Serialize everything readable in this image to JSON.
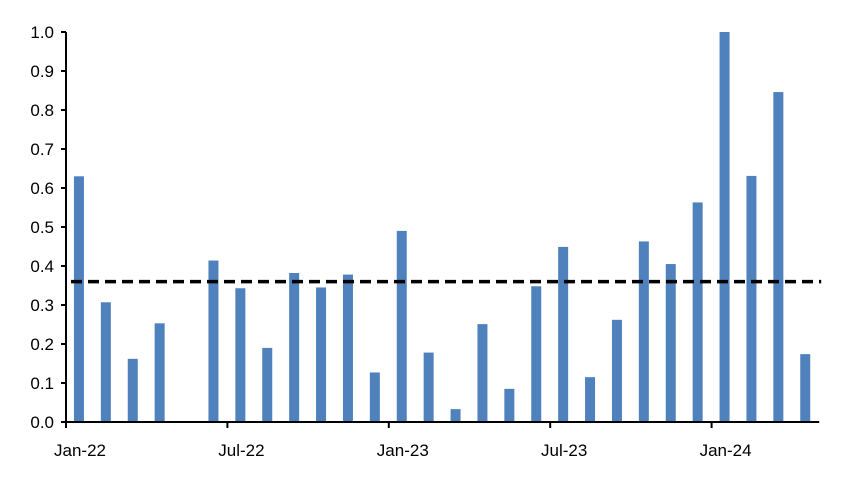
{
  "chart_data": {
    "type": "bar",
    "title": "",
    "xlabel": "",
    "ylabel": "",
    "ylim": [
      0,
      1.0
    ],
    "yticks": [
      "0.0",
      "0.1",
      "0.2",
      "0.3",
      "0.4",
      "0.5",
      "0.6",
      "0.7",
      "0.8",
      "0.9",
      "1.0"
    ],
    "xtick_labels": [
      "Jan-22",
      "Jul-22",
      "Jan-23",
      "Jul-23",
      "Jan-24"
    ],
    "categories": [
      "Jan-22",
      "Feb-22",
      "Mar-22",
      "Apr-22",
      "May-22",
      "Jun-22",
      "Jul-22",
      "Aug-22",
      "Sep-22",
      "Oct-22",
      "Nov-22",
      "Dec-22",
      "Jan-23",
      "Feb-23",
      "Mar-23",
      "Apr-23",
      "May-23",
      "Jun-23",
      "Jul-23",
      "Aug-23",
      "Sep-23",
      "Oct-23",
      "Nov-23",
      "Dec-23",
      "Jan-24",
      "Feb-24",
      "Mar-24",
      "Apr-24"
    ],
    "values": [
      0.63,
      0.307,
      0.162,
      0.253,
      null,
      0.414,
      0.343,
      0.19,
      0.382,
      0.345,
      0.378,
      0.127,
      0.49,
      0.178,
      0.033,
      0.251,
      0.085,
      0.348,
      0.449,
      0.115,
      0.262,
      0.463,
      0.405,
      0.563,
      1.0,
      0.631,
      0.846,
      0.174
    ],
    "reference_line": {
      "value": 0.36,
      "style": "dashed",
      "color": "#000000"
    },
    "bar_color": "#4F81BD",
    "grid": false,
    "legend": "none"
  }
}
